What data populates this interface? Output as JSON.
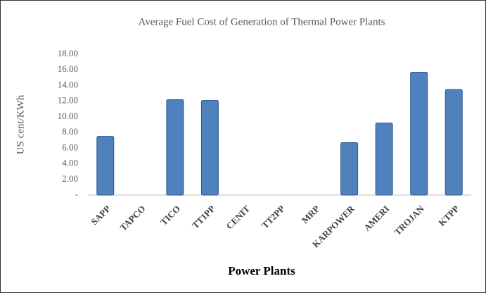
{
  "chart_data": {
    "type": "bar",
    "title": "Average Fuel Cost of Generation of Thermal Power Plants",
    "x_label": "Power Plants",
    "y_label": "US cent/KWh",
    "categories": [
      "SAPP",
      "TAPCO",
      "TICO",
      "TT1PP",
      "CENIT",
      "TT2PP",
      "MRP",
      "KARPOWER",
      "AMERI",
      "TROJAN",
      "KTPP"
    ],
    "values": [
      7.5,
      null,
      12.2,
      12.1,
      null,
      null,
      null,
      6.7,
      9.2,
      15.7,
      13.5
    ],
    "color": "#4f81bd",
    "ylim": [
      0,
      18
    ],
    "yticks": [
      {
        "value": 0,
        "label": "-"
      },
      {
        "value": 2,
        "label": "2.00"
      },
      {
        "value": 4,
        "label": "4.00"
      },
      {
        "value": 6,
        "label": "6.00"
      },
      {
        "value": 8,
        "label": "8.00"
      },
      {
        "value": 10,
        "label": "10.00"
      },
      {
        "value": 12,
        "label": "12.00"
      },
      {
        "value": 14,
        "label": "14.00"
      },
      {
        "value": 16,
        "label": "16.00"
      },
      {
        "value": 18,
        "label": "18.00"
      }
    ],
    "grid": false
  }
}
